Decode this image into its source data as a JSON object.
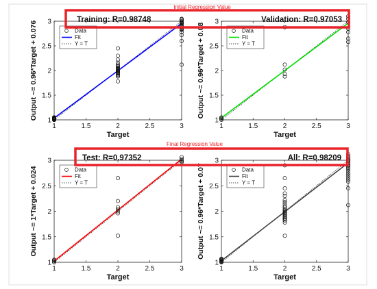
{
  "annotations": {
    "top": "Initial Regression Value",
    "bottom": "Final Regression Value"
  },
  "colors": {
    "highlight": "#e8232a",
    "frame": "#dcdcdc"
  },
  "chart_data": [
    {
      "type": "scatter",
      "title": "Training: R=0.98748",
      "xlabel": "Target",
      "ylabel": "Output ~= 0.96*Target + 0.076",
      "xlim": [
        1,
        3
      ],
      "ylim": [
        1,
        3
      ],
      "xticks": [
        "1",
        "1.5",
        "2",
        "2.5",
        "3"
      ],
      "yticks": [
        "1",
        "1.5",
        "2",
        "2.5",
        "3"
      ],
      "grid": false,
      "fit_color": "#0000ff",
      "legend": {
        "placement": "top-left",
        "entries": [
          "Data",
          "Fit",
          "Y = T"
        ]
      },
      "fit": {
        "slope": 0.96,
        "intercept": 0.076
      },
      "series": [
        {
          "x": [
            1,
            1,
            1,
            1,
            1,
            1,
            1,
            1,
            1,
            1,
            1,
            1,
            1,
            1,
            1,
            1,
            1,
            1,
            1,
            1,
            1,
            1,
            1,
            1
          ],
          "y": [
            1,
            1.01,
            1.02,
            1.03,
            1.04,
            1.05,
            1.0,
            1.02,
            1.01,
            1.03,
            1.04,
            1.05,
            1.0,
            1.02,
            1.01,
            1.03,
            1.04,
            1.05,
            1.0,
            1.02,
            1.01,
            1.03,
            1.04,
            1.05
          ]
        },
        {
          "x": [
            2,
            2,
            2,
            2,
            2,
            2,
            2,
            2,
            2,
            2,
            2,
            2,
            2,
            2,
            2,
            2,
            2,
            2,
            2,
            2,
            2
          ],
          "y": [
            2.45,
            2.3,
            2.22,
            2.16,
            2.12,
            2.09,
            2.06,
            2.04,
            2.02,
            2.0,
            1.98,
            1.96,
            1.94,
            1.92,
            1.9,
            1.88,
            1.78,
            2.08,
            2.03,
            1.99,
            1.95
          ]
        },
        {
          "x": [
            3,
            3,
            3,
            3,
            3,
            3,
            3,
            3,
            3,
            3,
            3,
            3,
            3,
            3,
            3,
            3,
            3,
            3
          ],
          "y": [
            3.05,
            3.02,
            3.0,
            2.98,
            2.95,
            2.92,
            2.9,
            2.86,
            2.82,
            2.78,
            2.72,
            2.6,
            2.12,
            3.04,
            2.96,
            2.88,
            2.84,
            2.97
          ]
        }
      ]
    },
    {
      "type": "scatter",
      "title": "Validation: R=0.97053",
      "xlabel": "Target",
      "ylabel": "Output ~= 0.96*Target + 0.08",
      "xlim": [
        1,
        3
      ],
      "ylim": [
        1,
        3
      ],
      "xticks": [
        "1",
        "1.5",
        "2",
        "2.5",
        "3"
      ],
      "yticks": [
        "1",
        "1.5",
        "2",
        "2.5",
        "3"
      ],
      "grid": false,
      "fit_color": "#00e000",
      "legend": {
        "placement": "top-left",
        "entries": [
          "Data",
          "Fit",
          "Y = T"
        ]
      },
      "fit": {
        "slope": 0.96,
        "intercept": 0.08
      },
      "series": [
        {
          "x": [
            1,
            1,
            1,
            1
          ],
          "y": [
            1.0,
            1.02,
            1.04,
            1.05
          ]
        },
        {
          "x": [
            2,
            2,
            2,
            2,
            2
          ],
          "y": [
            2.88,
            2.12,
            2.02,
            1.93,
            1.88
          ]
        },
        {
          "x": [
            3,
            3,
            3,
            3,
            3,
            3,
            3
          ],
          "y": [
            3.1,
            3.05,
            2.98,
            2.85,
            2.78,
            2.65,
            2.58
          ]
        }
      ]
    },
    {
      "type": "scatter",
      "title": "Test: R=0.97352",
      "xlabel": "Target",
      "ylabel": "Output ~= 1*Target + 0.024",
      "xlim": [
        1,
        3
      ],
      "ylim": [
        1,
        3
      ],
      "xticks": [
        "1",
        "1.5",
        "2",
        "2.5",
        "3"
      ],
      "yticks": [
        "1",
        "1.5",
        "2",
        "2.5",
        "3"
      ],
      "grid": false,
      "fit_color": "#ff0000",
      "legend": {
        "placement": "top-left",
        "entries": [
          "Data",
          "Fit",
          "Y = T"
        ]
      },
      "fit": {
        "slope": 1.0,
        "intercept": 0.024
      },
      "series": [
        {
          "x": [
            1,
            1,
            1,
            1
          ],
          "y": [
            1.0,
            1.02,
            1.04,
            1.05
          ]
        },
        {
          "x": [
            2,
            2,
            2,
            2,
            2,
            2,
            2
          ],
          "y": [
            2.65,
            2.2,
            2.08,
            2.04,
            2.0,
            1.96,
            1.52
          ]
        },
        {
          "x": [
            3,
            3,
            3,
            3,
            3
          ],
          "y": [
            3.06,
            3.03,
            3.0,
            2.98,
            2.96
          ]
        }
      ]
    },
    {
      "type": "scatter",
      "title": "All: R=0.98209",
      "xlabel": "Target",
      "ylabel": "Output ~= 0.96*Target + 0.07",
      "xlim": [
        1,
        3
      ],
      "ylim": [
        1,
        3
      ],
      "xticks": [
        "1",
        "1.5",
        "2",
        "2.5",
        "3"
      ],
      "yticks": [
        "1",
        "1.5",
        "2",
        "2.5",
        "3"
      ],
      "grid": false,
      "fit_color": "#444444",
      "legend": {
        "placement": "top-left",
        "entries": [
          "Data",
          "Fit",
          "Y = T"
        ]
      },
      "fit": {
        "slope": 0.96,
        "intercept": 0.07
      },
      "series": [
        {
          "x": [
            1,
            1,
            1,
            1,
            1,
            1,
            1,
            1
          ],
          "y": [
            1.0,
            1.01,
            1.02,
            1.03,
            1.04,
            1.05,
            1.06,
            1.07
          ]
        },
        {
          "x": [
            2,
            2,
            2,
            2,
            2,
            2,
            2,
            2,
            2,
            2,
            2,
            2,
            2,
            2,
            2,
            2,
            2,
            2,
            2,
            2,
            2,
            2,
            2,
            2
          ],
          "y": [
            2.9,
            2.65,
            2.45,
            2.3,
            2.22,
            2.18,
            2.14,
            2.1,
            2.07,
            2.04,
            2.02,
            2.0,
            1.98,
            1.96,
            1.94,
            1.92,
            1.9,
            1.88,
            1.86,
            1.84,
            1.82,
            1.78,
            1.52,
            2.35
          ]
        },
        {
          "x": [
            3,
            3,
            3,
            3,
            3,
            3,
            3,
            3,
            3,
            3,
            3,
            3,
            3,
            3,
            3,
            3,
            3,
            3,
            3,
            3
          ],
          "y": [
            3.12,
            3.08,
            3.05,
            3.02,
            3.0,
            2.98,
            2.95,
            2.92,
            2.9,
            2.88,
            2.85,
            2.82,
            2.78,
            2.74,
            2.7,
            2.66,
            2.62,
            2.58,
            2.45,
            2.12
          ]
        }
      ]
    }
  ]
}
